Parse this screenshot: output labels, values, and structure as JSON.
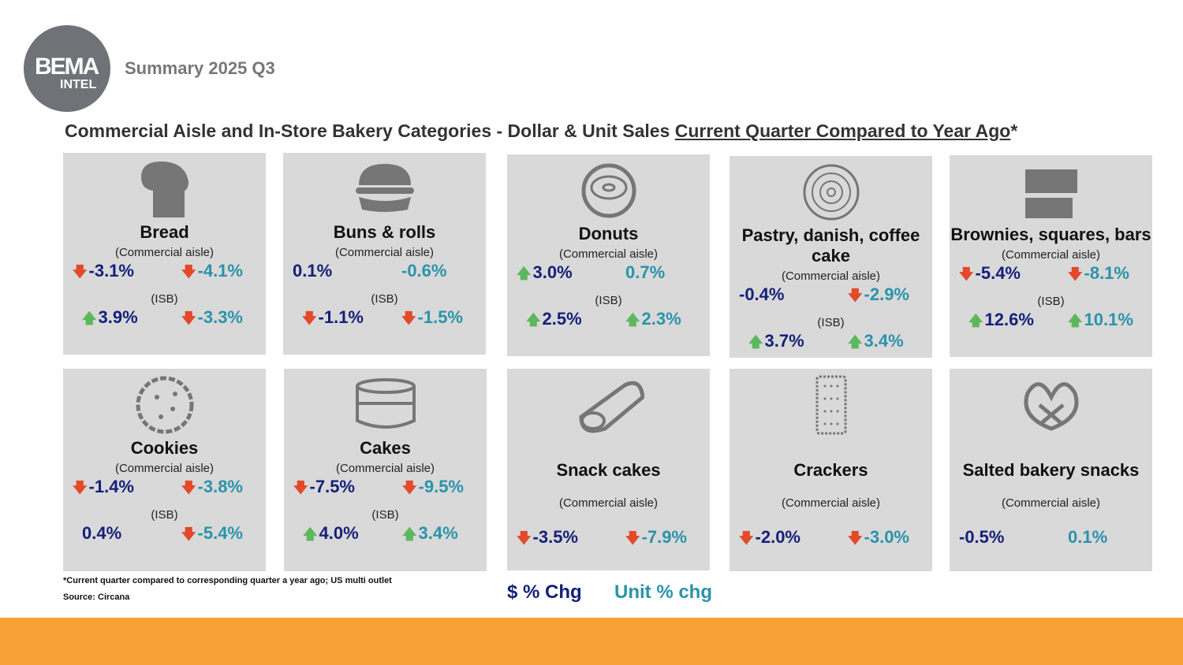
{
  "header": {
    "logo_text": "BEMA",
    "logo_sub": "INTEL",
    "subtitle": "Summary 2025 Q3",
    "title_plain": "Commercial Aisle and In-Store Bakery Categories - Dollar & Unit Sales ",
    "title_underlined": "Current Quarter Compared to Year Ago",
    "title_suffix": "*"
  },
  "colors": {
    "dollar": "#15207a",
    "unit": "#2a93ab",
    "up": "#5cb85c",
    "down": "#e24a2a",
    "card": "#d9d9d9",
    "footer": "#f7a035"
  },
  "cards": [
    {
      "name": "Bread",
      "sub": "(Commercial aisle)",
      "icon": "bread-icon",
      "dollar": "-3.1%",
      "dollar_dir": "down",
      "unit": "-4.1%",
      "unit_dir": "down",
      "isb_label": "(ISB)",
      "isb_dollar": "3.9%",
      "isb_dollar_dir": "up",
      "isb_unit": "-3.3%",
      "isb_unit_dir": "down"
    },
    {
      "name": "Buns & rolls",
      "sub": "(Commercial aisle)",
      "icon": "burger-bun-icon",
      "dollar": "0.1%",
      "dollar_dir": "",
      "unit": "-0.6%",
      "unit_dir": "",
      "isb_label": "(ISB)",
      "isb_dollar": "-1.1%",
      "isb_dollar_dir": "down",
      "isb_unit": "-1.5%",
      "isb_unit_dir": "down"
    },
    {
      "name": "Donuts",
      "sub": "(Commercial aisle)",
      "icon": "donut-icon",
      "dollar": "3.0%",
      "dollar_dir": "up",
      "unit": "0.7%",
      "unit_dir": "",
      "isb_label": "(ISB)",
      "isb_dollar": "2.5%",
      "isb_dollar_dir": "up",
      "isb_unit": "2.3%",
      "isb_unit_dir": "up"
    },
    {
      "name": "Pastry, danish, coffee cake",
      "sub": "(Commercial aisle)",
      "icon": "cinnamon-roll-icon",
      "dollar": "-0.4%",
      "dollar_dir": "",
      "unit": "-2.9%",
      "unit_dir": "down",
      "isb_label": "(ISB)",
      "isb_dollar": "3.7%",
      "isb_dollar_dir": "up",
      "isb_unit": "3.4%",
      "isb_unit_dir": "up"
    },
    {
      "name": "Brownies, squares, bars",
      "sub": "(Commercial aisle)",
      "icon": "brownie-icon",
      "dollar": "-5.4%",
      "dollar_dir": "down",
      "unit": "-8.1%",
      "unit_dir": "down",
      "isb_label": "(ISB)",
      "isb_dollar": "12.6%",
      "isb_dollar_dir": "up",
      "isb_unit": "10.1%",
      "isb_unit_dir": "up"
    },
    {
      "name": "Cookies",
      "sub": "(Commercial aisle)",
      "icon": "cookie-icon",
      "dollar": "-1.4%",
      "dollar_dir": "down",
      "unit": "-3.8%",
      "unit_dir": "down",
      "isb_label": "(ISB)",
      "isb_dollar": "0.4%",
      "isb_dollar_dir": "",
      "isb_unit": "-5.4%",
      "isb_unit_dir": "down"
    },
    {
      "name": "Cakes",
      "sub": "(Commercial aisle)",
      "icon": "cake-icon",
      "dollar": "-7.5%",
      "dollar_dir": "down",
      "unit": "-9.5%",
      "unit_dir": "down",
      "isb_label": "(ISB)",
      "isb_dollar": "4.0%",
      "isb_dollar_dir": "up",
      "isb_unit": "3.4%",
      "isb_unit_dir": "up"
    },
    {
      "name": "Snack cakes",
      "sub": "(Commercial aisle)",
      "icon": "snack-cake-icon",
      "dollar": "-3.5%",
      "dollar_dir": "down",
      "unit": "-7.9%",
      "unit_dir": "down"
    },
    {
      "name": "Crackers",
      "sub": "(Commercial aisle)",
      "icon": "cracker-icon",
      "dollar": "-2.0%",
      "dollar_dir": "down",
      "unit": "-3.0%",
      "unit_dir": "down"
    },
    {
      "name": "Salted bakery snacks",
      "sub": "(Commercial aisle)",
      "icon": "pretzel-icon",
      "dollar": "-0.5%",
      "dollar_dir": "",
      "unit": "0.1%",
      "unit_dir": ""
    }
  ],
  "footnote": "*Current quarter compared to corresponding quarter a year ago; US multi outlet",
  "source": "Source: Circana",
  "legend": {
    "dollar": "$ % Chg",
    "unit": "Unit % chg"
  }
}
